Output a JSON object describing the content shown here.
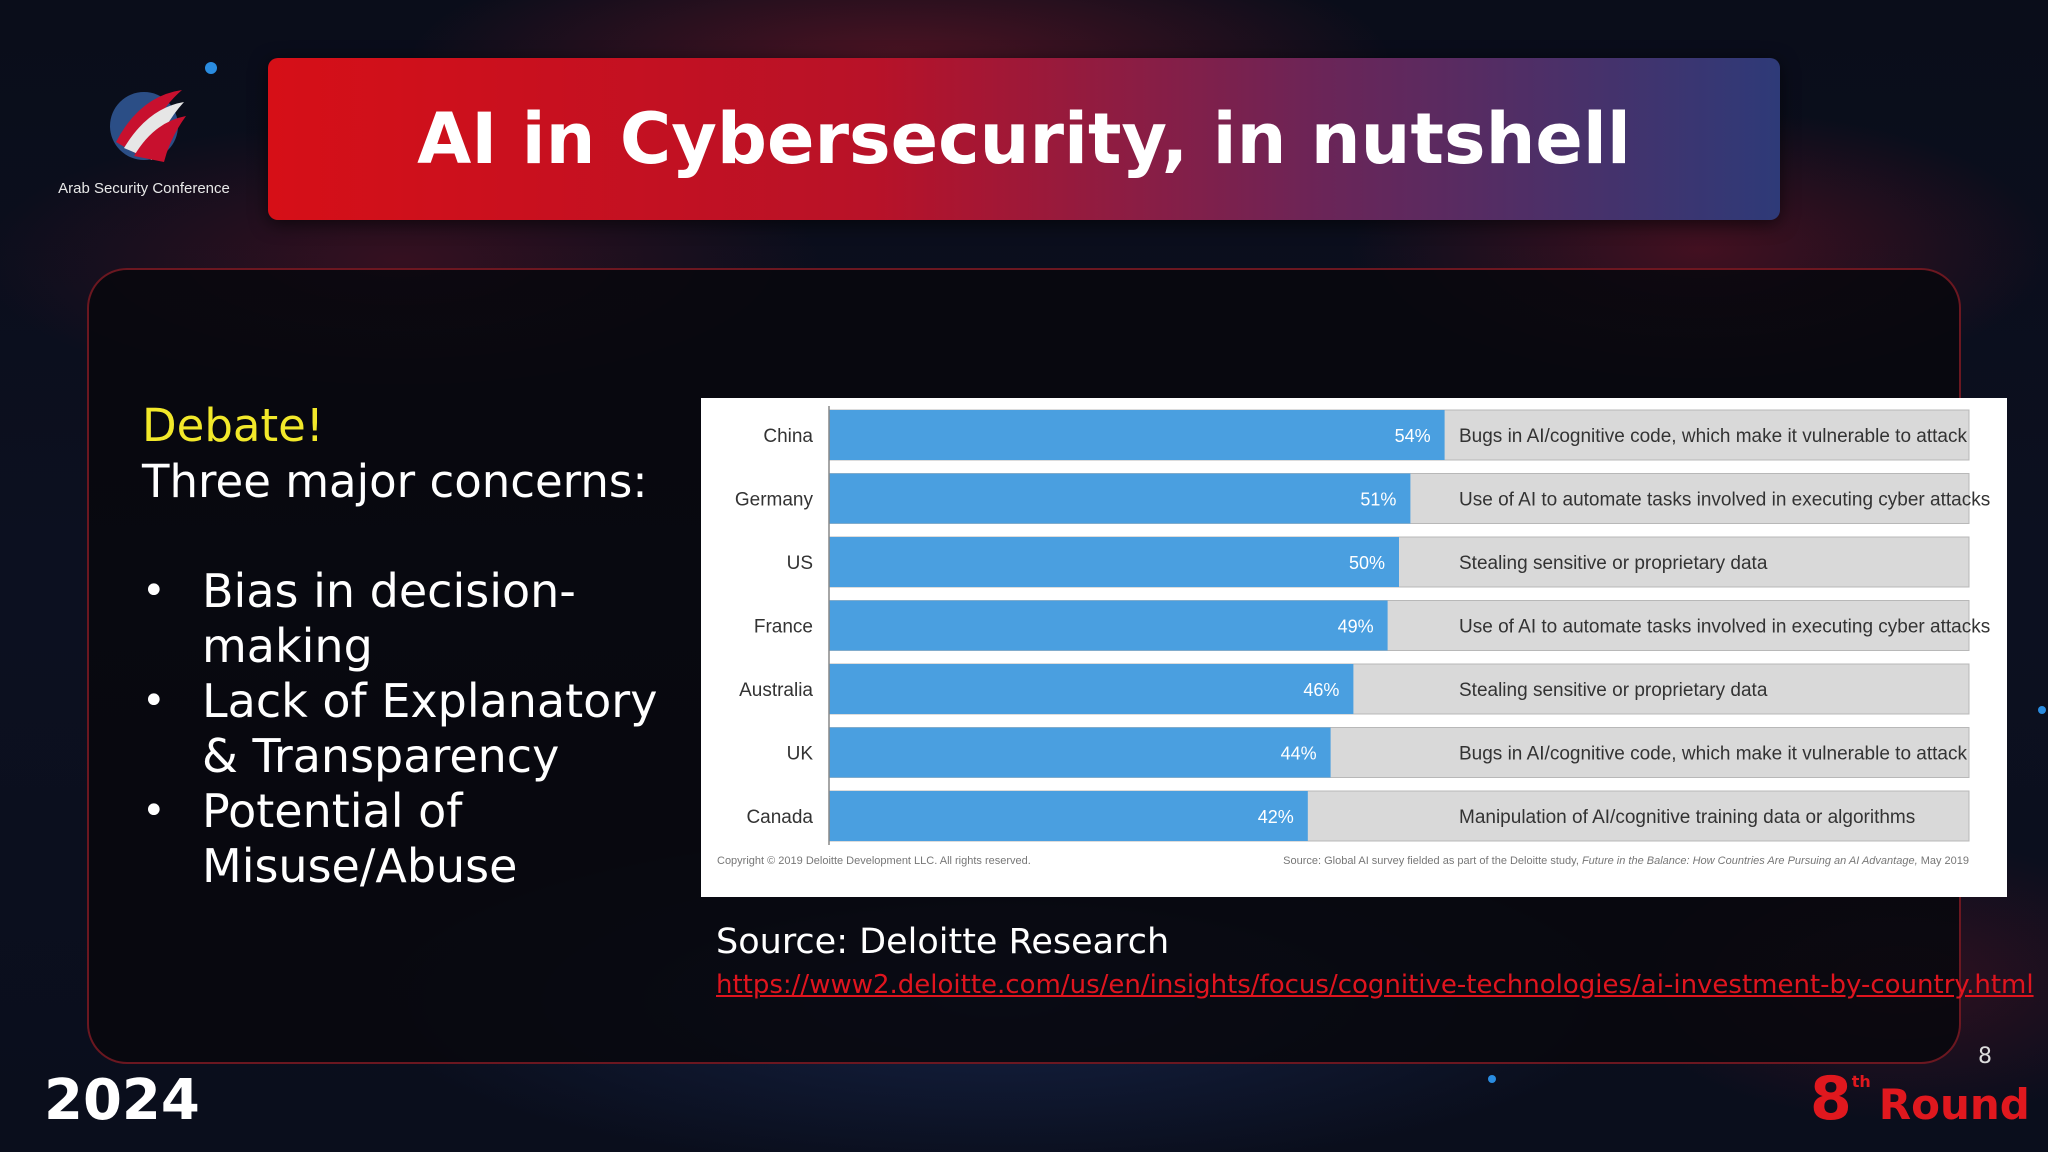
{
  "logo": {
    "text": "Arab Security Conference"
  },
  "slide": {
    "title": "AI in Cybersecurity, in nutshell",
    "debate": "Debate!",
    "concerns_heading": "Three major concerns:",
    "concerns": [
      "Bias in decision-making",
      "Lack of Explanatory & Transparency",
      "Potential of Misuse/Abuse"
    ],
    "source_label": "Source: Deloitte Research",
    "source_url": "https://www2.deloitte.com/us/en/insights/focus/cognitive-technologies/ai-investment-by-country.html",
    "page_number": "8",
    "year": "2024",
    "round_number": "8",
    "round_suffix": "th",
    "round_word": "Round"
  },
  "chart_data": {
    "type": "bar",
    "orientation": "horizontal",
    "categories": [
      "China",
      "Germany",
      "US",
      "France",
      "Australia",
      "UK",
      "Canada"
    ],
    "values": [
      54,
      51,
      50,
      49,
      46,
      44,
      42
    ],
    "value_labels": [
      "54%",
      "51%",
      "50%",
      "49%",
      "46%",
      "44%",
      "42%"
    ],
    "concerns": [
      "Bugs in AI/cognitive code, which make it vulnerable to attack",
      "Use of AI to automate tasks involved in executing cyber attacks",
      "Stealing sensitive or proprietary data",
      "Use of AI to automate tasks involved in executing cyber attacks",
      "Stealing sensitive or proprietary data",
      "Bugs in AI/cognitive code, which make it vulnerable to attack",
      "Manipulation of AI/cognitive training data or algorithms"
    ],
    "xlim": [
      0,
      100
    ],
    "copyright": "Copyright © 2019 Deloitte Development LLC. All rights reserved.",
    "source_note": "Source: Global AI survey fielded as part of the Deloitte study,",
    "source_title": "Future in the Balance: How Countries Are Pursuing an AI Advantage,",
    "source_date": "May 2019",
    "colors": {
      "bar": "#4a9fe0",
      "track": "#d9d9d9"
    }
  }
}
